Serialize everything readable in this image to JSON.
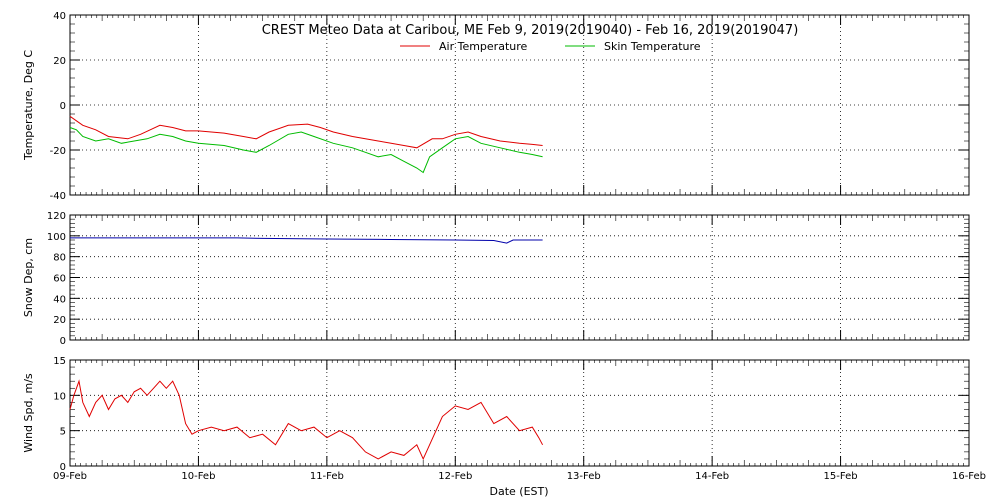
{
  "title": "CREST Meteo Data at Caribou, ME   Feb  9, 2019(2019040) - Feb 16, 2019(2019047)",
  "xlabel": "Date (EST)",
  "x_ticks": [
    "09-Feb",
    "10-Feb",
    "11-Feb",
    "12-Feb",
    "13-Feb",
    "14-Feb",
    "15-Feb",
    "16-Feb"
  ],
  "x_range_days": [
    0,
    7
  ],
  "colors": {
    "air": "#e00000",
    "skin": "#00bb00",
    "snow": "#0000aa",
    "wind": "#e00000"
  },
  "chart_data": [
    {
      "type": "line",
      "ylabel": "Temperature, Deg C",
      "ylim": [
        -40,
        40
      ],
      "yticks": [
        -40,
        -20,
        0,
        20,
        40
      ],
      "grid": true,
      "legend": "top-center",
      "series": [
        {
          "name": "Air Temperature",
          "color_key": "air",
          "points": [
            [
              0,
              -5
            ],
            [
              0.1,
              -9
            ],
            [
              0.2,
              -11
            ],
            [
              0.3,
              -14
            ],
            [
              0.45,
              -15
            ],
            [
              0.55,
              -13
            ],
            [
              0.7,
              -9
            ],
            [
              0.8,
              -10
            ],
            [
              0.9,
              -11.5
            ],
            [
              1.0,
              -11.5
            ],
            [
              1.2,
              -12.5
            ],
            [
              1.35,
              -14
            ],
            [
              1.45,
              -15
            ],
            [
              1.55,
              -12
            ],
            [
              1.7,
              -9
            ],
            [
              1.85,
              -8.5
            ],
            [
              1.95,
              -10
            ],
            [
              2.05,
              -12
            ],
            [
              2.2,
              -14
            ],
            [
              2.4,
              -16
            ],
            [
              2.5,
              -17
            ],
            [
              2.6,
              -18
            ],
            [
              2.7,
              -19
            ],
            [
              2.82,
              -15
            ],
            [
              2.9,
              -15
            ],
            [
              3.0,
              -13
            ],
            [
              3.1,
              -12
            ],
            [
              3.2,
              -14
            ],
            [
              3.35,
              -16
            ],
            [
              3.5,
              -17
            ],
            [
              3.6,
              -17.5
            ],
            [
              3.68,
              -18
            ]
          ]
        },
        {
          "name": "Skin Temperature",
          "color_key": "skin",
          "points": [
            [
              0,
              -10
            ],
            [
              0.05,
              -11
            ],
            [
              0.1,
              -14
            ],
            [
              0.2,
              -16
            ],
            [
              0.3,
              -15
            ],
            [
              0.4,
              -17
            ],
            [
              0.5,
              -16
            ],
            [
              0.6,
              -15
            ],
            [
              0.7,
              -13
            ],
            [
              0.8,
              -14
            ],
            [
              0.9,
              -16
            ],
            [
              1.0,
              -17
            ],
            [
              1.2,
              -18
            ],
            [
              1.35,
              -20
            ],
            [
              1.45,
              -21
            ],
            [
              1.55,
              -18
            ],
            [
              1.7,
              -13
            ],
            [
              1.8,
              -12
            ],
            [
              1.9,
              -14
            ],
            [
              2.05,
              -17
            ],
            [
              2.2,
              -19
            ],
            [
              2.3,
              -21
            ],
            [
              2.4,
              -23
            ],
            [
              2.5,
              -22
            ],
            [
              2.6,
              -25
            ],
            [
              2.7,
              -28
            ],
            [
              2.75,
              -30
            ],
            [
              2.8,
              -23
            ],
            [
              2.9,
              -19
            ],
            [
              3.0,
              -15
            ],
            [
              3.1,
              -14
            ],
            [
              3.2,
              -17
            ],
            [
              3.35,
              -19
            ],
            [
              3.5,
              -21
            ],
            [
              3.6,
              -22
            ],
            [
              3.68,
              -23
            ]
          ]
        }
      ]
    },
    {
      "type": "line",
      "ylabel": "Snow Dep, cm",
      "ylim": [
        0,
        120
      ],
      "yticks": [
        0,
        20,
        40,
        60,
        80,
        100,
        120
      ],
      "grid": true,
      "series": [
        {
          "name": "",
          "color_key": "snow",
          "points": [
            [
              0,
              98
            ],
            [
              0.5,
              98
            ],
            [
              1.0,
              98
            ],
            [
              1.3,
              98
            ],
            [
              1.5,
              97.5
            ],
            [
              2.0,
              97
            ],
            [
              2.5,
              96.5
            ],
            [
              3.0,
              96
            ],
            [
              3.3,
              95.5
            ],
            [
              3.4,
              93
            ],
            [
              3.45,
              96
            ],
            [
              3.68,
              96
            ]
          ]
        }
      ]
    },
    {
      "type": "line",
      "ylabel": "Wind Spd, m/s",
      "ylim": [
        0,
        15
      ],
      "yticks": [
        0,
        5,
        10,
        15
      ],
      "grid": true,
      "series": [
        {
          "name": "",
          "color_key": "wind",
          "points": [
            [
              0,
              8
            ],
            [
              0.03,
              10
            ],
            [
              0.07,
              12
            ],
            [
              0.1,
              9
            ],
            [
              0.15,
              7
            ],
            [
              0.2,
              9
            ],
            [
              0.25,
              10
            ],
            [
              0.3,
              8
            ],
            [
              0.35,
              9.5
            ],
            [
              0.4,
              10
            ],
            [
              0.45,
              9
            ],
            [
              0.5,
              10.5
            ],
            [
              0.55,
              11
            ],
            [
              0.6,
              10
            ],
            [
              0.65,
              11
            ],
            [
              0.7,
              12
            ],
            [
              0.75,
              11
            ],
            [
              0.8,
              12
            ],
            [
              0.85,
              10
            ],
            [
              0.9,
              6
            ],
            [
              0.95,
              4.5
            ],
            [
              1.0,
              5
            ],
            [
              1.1,
              5.5
            ],
            [
              1.2,
              5
            ],
            [
              1.3,
              5.5
            ],
            [
              1.4,
              4
            ],
            [
              1.5,
              4.5
            ],
            [
              1.6,
              3
            ],
            [
              1.7,
              6
            ],
            [
              1.8,
              5
            ],
            [
              1.9,
              5.5
            ],
            [
              2.0,
              4
            ],
            [
              2.1,
              5
            ],
            [
              2.2,
              4
            ],
            [
              2.3,
              2
            ],
            [
              2.4,
              1
            ],
            [
              2.5,
              2
            ],
            [
              2.6,
              1.5
            ],
            [
              2.7,
              3
            ],
            [
              2.75,
              1
            ],
            [
              2.8,
              3
            ],
            [
              2.9,
              7
            ],
            [
              3.0,
              8.5
            ],
            [
              3.1,
              8
            ],
            [
              3.2,
              9
            ],
            [
              3.3,
              6
            ],
            [
              3.4,
              7
            ],
            [
              3.5,
              5
            ],
            [
              3.6,
              5.5
            ],
            [
              3.65,
              4
            ],
            [
              3.68,
              3
            ]
          ]
        }
      ]
    }
  ]
}
